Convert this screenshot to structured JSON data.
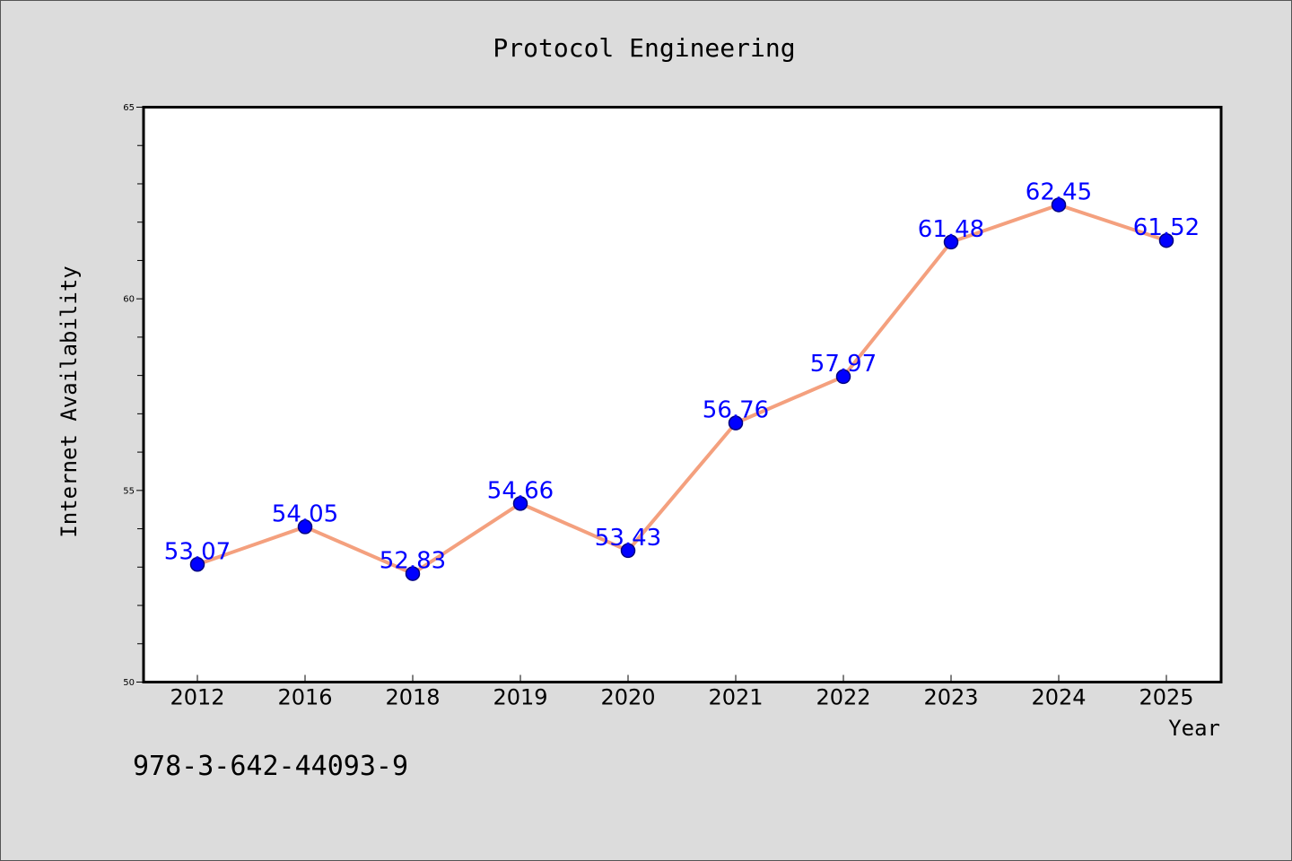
{
  "chart_data": {
    "type": "line",
    "title": "Protocol Engineering",
    "xlabel": "Year",
    "ylabel": "Internet Availability",
    "categories": [
      "2012",
      "2016",
      "2018",
      "2019",
      "2020",
      "2021",
      "2022",
      "2023",
      "2024",
      "2025"
    ],
    "series": [
      {
        "values": [
          53.07,
          54.05,
          52.83,
          54.66,
          53.43,
          56.76,
          57.97,
          61.48,
          62.45,
          61.52
        ]
      }
    ],
    "data_labels": [
      "53.07",
      "54.05",
      "52.83",
      "54.66",
      "53.43",
      "56.76",
      "57.97",
      "61.48",
      "62.45",
      "61.52"
    ],
    "ylim": [
      50,
      65
    ],
    "yticks_major": [
      50,
      55,
      60,
      65
    ],
    "yticks_minor_step": 1,
    "grid": false,
    "legend": "none",
    "colors": {
      "line": "#f4a07e",
      "marker": "#0000ff",
      "marker_edge": "#000080",
      "data_label": "#0000ff",
      "plot_background": "#ffffff",
      "figure_background": "#dcdcdc"
    }
  },
  "footer": {
    "isbn": "978-3-642-44093-9"
  }
}
